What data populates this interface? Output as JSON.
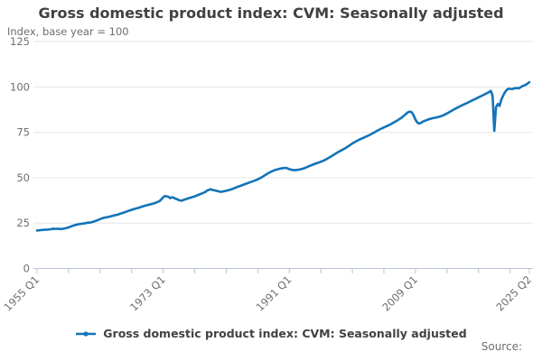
{
  "chart": {
    "title": "Gross domestic product index: CVM: Seasonally adjusted",
    "subtitle": "Index, base year = 100",
    "legend_label": "Gross domestic product index: CVM: Seasonally adjusted",
    "source_label": "Source:"
  },
  "chart_data": {
    "type": "line",
    "title": "Gross domestic product index: CVM: Seasonally adjusted",
    "subtitle": "Index, base year = 100",
    "xlabel": "",
    "ylabel": "Index, base year = 100",
    "ylim": [
      0,
      125
    ],
    "yticks": [
      0,
      25,
      50,
      75,
      100,
      125
    ],
    "xlim": [
      1955.0,
      2025.25
    ],
    "minor_tick_interval_years": 4.5,
    "xticks_labeled": [
      {
        "t": 1955.0,
        "label": "1955 Q1"
      },
      {
        "t": 1973.0,
        "label": "1973 Q1"
      },
      {
        "t": 1991.0,
        "label": "1991 Q1"
      },
      {
        "t": 2009.0,
        "label": "2009 Q1"
      },
      {
        "t": 2025.25,
        "label": "2025 Q2"
      }
    ],
    "grid": true,
    "legend_position": "bottom",
    "colors": {
      "line": "#1274b8",
      "grid": "#e6e6e6",
      "axis": "#b9c3d6",
      "tick_label": "#6e6e6e",
      "title_text": "#414042"
    },
    "series": [
      {
        "name": "Gross domestic product index: CVM: Seasonally adjusted",
        "points": [
          [
            1955.0,
            20.9
          ],
          [
            1955.5,
            21.1
          ],
          [
            1956.0,
            21.3
          ],
          [
            1956.5,
            21.4
          ],
          [
            1957.0,
            21.6
          ],
          [
            1957.25,
            21.9
          ],
          [
            1957.5,
            21.8
          ],
          [
            1958.0,
            21.8
          ],
          [
            1958.5,
            21.7
          ],
          [
            1959.0,
            22.1
          ],
          [
            1959.5,
            22.6
          ],
          [
            1960.0,
            23.4
          ],
          [
            1960.5,
            24.0
          ],
          [
            1961.0,
            24.4
          ],
          [
            1961.5,
            24.7
          ],
          [
            1962.0,
            25.0
          ],
          [
            1962.25,
            25.3
          ],
          [
            1962.5,
            25.2
          ],
          [
            1963.0,
            25.7
          ],
          [
            1963.5,
            26.4
          ],
          [
            1964.0,
            27.2
          ],
          [
            1964.5,
            27.9
          ],
          [
            1965.0,
            28.3
          ],
          [
            1965.5,
            28.7
          ],
          [
            1966.0,
            29.2
          ],
          [
            1966.5,
            29.6
          ],
          [
            1967.0,
            30.3
          ],
          [
            1967.5,
            30.9
          ],
          [
            1968.0,
            31.7
          ],
          [
            1968.5,
            32.3
          ],
          [
            1969.0,
            32.9
          ],
          [
            1969.5,
            33.4
          ],
          [
            1970.0,
            34.1
          ],
          [
            1970.5,
            34.7
          ],
          [
            1971.0,
            35.2
          ],
          [
            1971.5,
            35.7
          ],
          [
            1972.0,
            36.3
          ],
          [
            1972.5,
            37.2
          ],
          [
            1972.75,
            38.1
          ],
          [
            1973.0,
            39.2
          ],
          [
            1973.25,
            39.9
          ],
          [
            1973.5,
            39.7
          ],
          [
            1973.75,
            39.5
          ],
          [
            1974.0,
            38.7
          ],
          [
            1974.25,
            39.2
          ],
          [
            1974.5,
            39.0
          ],
          [
            1974.75,
            38.4
          ],
          [
            1975.0,
            38.1
          ],
          [
            1975.25,
            37.6
          ],
          [
            1975.5,
            37.4
          ],
          [
            1975.75,
            37.5
          ],
          [
            1976.0,
            37.9
          ],
          [
            1976.5,
            38.5
          ],
          [
            1977.0,
            39.1
          ],
          [
            1977.5,
            39.7
          ],
          [
            1978.0,
            40.5
          ],
          [
            1978.5,
            41.3
          ],
          [
            1979.0,
            42.1
          ],
          [
            1979.25,
            42.9
          ],
          [
            1979.5,
            43.3
          ],
          [
            1979.75,
            43.6
          ],
          [
            1980.0,
            43.3
          ],
          [
            1980.5,
            42.9
          ],
          [
            1981.0,
            42.4
          ],
          [
            1981.25,
            42.2
          ],
          [
            1981.5,
            42.4
          ],
          [
            1982.0,
            42.8
          ],
          [
            1982.5,
            43.3
          ],
          [
            1983.0,
            44.0
          ],
          [
            1983.5,
            44.8
          ],
          [
            1984.0,
            45.5
          ],
          [
            1984.5,
            46.2
          ],
          [
            1985.0,
            46.9
          ],
          [
            1985.5,
            47.6
          ],
          [
            1986.0,
            48.3
          ],
          [
            1986.5,
            49.1
          ],
          [
            1987.0,
            50.1
          ],
          [
            1987.5,
            51.3
          ],
          [
            1988.0,
            52.5
          ],
          [
            1988.5,
            53.5
          ],
          [
            1989.0,
            54.3
          ],
          [
            1989.5,
            54.8
          ],
          [
            1990.0,
            55.2
          ],
          [
            1990.5,
            55.4
          ],
          [
            1990.75,
            55.1
          ],
          [
            1991.0,
            54.7
          ],
          [
            1991.25,
            54.4
          ],
          [
            1991.5,
            54.2
          ],
          [
            1992.0,
            54.2
          ],
          [
            1992.5,
            54.5
          ],
          [
            1993.0,
            55.0
          ],
          [
            1993.5,
            55.8
          ],
          [
            1994.0,
            56.6
          ],
          [
            1994.5,
            57.4
          ],
          [
            1995.0,
            58.1
          ],
          [
            1995.5,
            58.8
          ],
          [
            1996.0,
            59.6
          ],
          [
            1996.5,
            60.7
          ],
          [
            1997.0,
            61.8
          ],
          [
            1997.5,
            63.0
          ],
          [
            1998.0,
            64.2
          ],
          [
            1998.5,
            65.2
          ],
          [
            1999.0,
            66.3
          ],
          [
            1999.5,
            67.5
          ],
          [
            2000.0,
            68.9
          ],
          [
            2000.5,
            70.0
          ],
          [
            2001.0,
            71.0
          ],
          [
            2001.5,
            71.8
          ],
          [
            2002.0,
            72.7
          ],
          [
            2002.5,
            73.6
          ],
          [
            2003.0,
            74.7
          ],
          [
            2003.5,
            75.8
          ],
          [
            2004.0,
            76.8
          ],
          [
            2004.5,
            77.7
          ],
          [
            2005.0,
            78.6
          ],
          [
            2005.5,
            79.5
          ],
          [
            2006.0,
            80.6
          ],
          [
            2006.5,
            81.7
          ],
          [
            2007.0,
            83.0
          ],
          [
            2007.5,
            84.6
          ],
          [
            2007.75,
            85.5
          ],
          [
            2008.0,
            86.2
          ],
          [
            2008.25,
            86.4
          ],
          [
            2008.5,
            85.9
          ],
          [
            2008.75,
            84.2
          ],
          [
            2009.0,
            82.0
          ],
          [
            2009.25,
            80.4
          ],
          [
            2009.5,
            79.8
          ],
          [
            2009.75,
            80.1
          ],
          [
            2010.0,
            80.8
          ],
          [
            2010.5,
            81.6
          ],
          [
            2011.0,
            82.3
          ],
          [
            2011.5,
            82.8
          ],
          [
            2012.0,
            83.2
          ],
          [
            2012.5,
            83.7
          ],
          [
            2013.0,
            84.4
          ],
          [
            2013.5,
            85.4
          ],
          [
            2014.0,
            86.5
          ],
          [
            2014.5,
            87.6
          ],
          [
            2015.0,
            88.6
          ],
          [
            2015.5,
            89.6
          ],
          [
            2016.0,
            90.5
          ],
          [
            2016.5,
            91.4
          ],
          [
            2017.0,
            92.4
          ],
          [
            2017.5,
            93.3
          ],
          [
            2018.0,
            94.3
          ],
          [
            2018.5,
            95.2
          ],
          [
            2019.0,
            96.1
          ],
          [
            2019.25,
            96.7
          ],
          [
            2019.5,
            97.1
          ],
          [
            2019.75,
            97.8
          ],
          [
            2020.0,
            95.2
          ],
          [
            2020.25,
            75.8
          ],
          [
            2020.5,
            88.8
          ],
          [
            2020.75,
            90.6
          ],
          [
            2021.0,
            89.5
          ],
          [
            2021.25,
            93.0
          ],
          [
            2021.5,
            95.1
          ],
          [
            2021.75,
            96.9
          ],
          [
            2022.0,
            98.3
          ],
          [
            2022.25,
            99.0
          ],
          [
            2022.5,
            98.9
          ],
          [
            2022.75,
            98.8
          ],
          [
            2023.0,
            99.1
          ],
          [
            2023.25,
            99.3
          ],
          [
            2023.5,
            99.4
          ],
          [
            2023.75,
            99.2
          ],
          [
            2024.0,
            99.8
          ],
          [
            2024.25,
            100.4
          ],
          [
            2024.5,
            100.8
          ],
          [
            2024.75,
            101.2
          ],
          [
            2025.0,
            101.9
          ],
          [
            2025.25,
            102.6
          ]
        ]
      }
    ]
  }
}
